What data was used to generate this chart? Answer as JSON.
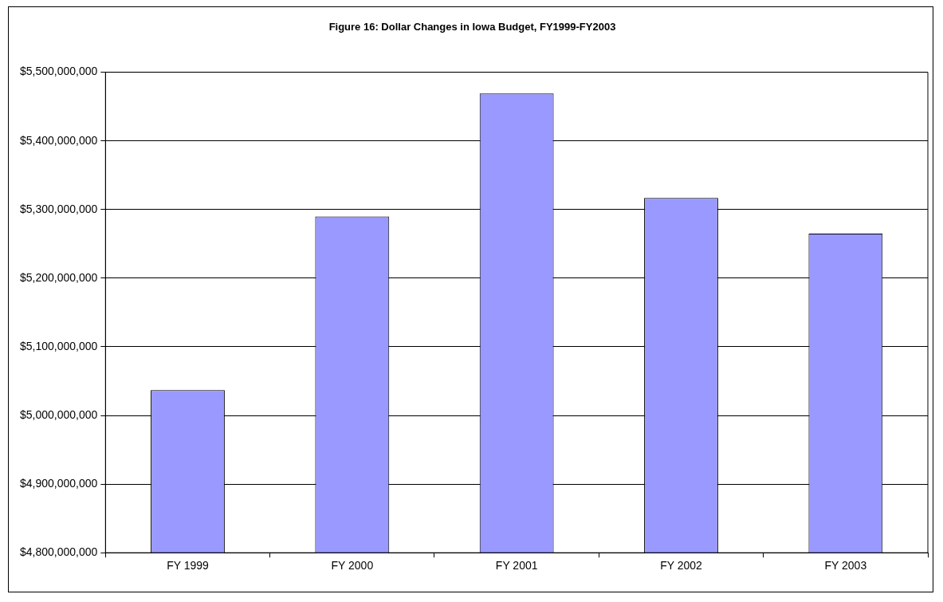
{
  "chart_data": {
    "type": "bar",
    "title": "Figure 16: Dollar Changes in Iowa Budget, FY1999-FY2003",
    "categories": [
      "FY 1999",
      "FY 2000",
      "FY 2001",
      "FY 2002",
      "FY 2003"
    ],
    "values": [
      5037000000,
      5290000000,
      5469000000,
      5317000000,
      5265000000
    ],
    "color": "#9999ff",
    "ylim": [
      4800000000,
      5500000000
    ],
    "yticks": [
      {
        "value": 4800000000,
        "label": "$4,800,000,000"
      },
      {
        "value": 4900000000,
        "label": "$4,900,000,000"
      },
      {
        "value": 5000000000,
        "label": "$5,000,000,000"
      },
      {
        "value": 5100000000,
        "label": "$5,100,000,000"
      },
      {
        "value": 5200000000,
        "label": "$5,200,000,000"
      },
      {
        "value": 5300000000,
        "label": "$5,300,000,000"
      },
      {
        "value": 5400000000,
        "label": "$5,400,000,000"
      },
      {
        "value": 5500000000,
        "label": "$5,500,000,000"
      }
    ],
    "grid": "y",
    "legend": false
  }
}
